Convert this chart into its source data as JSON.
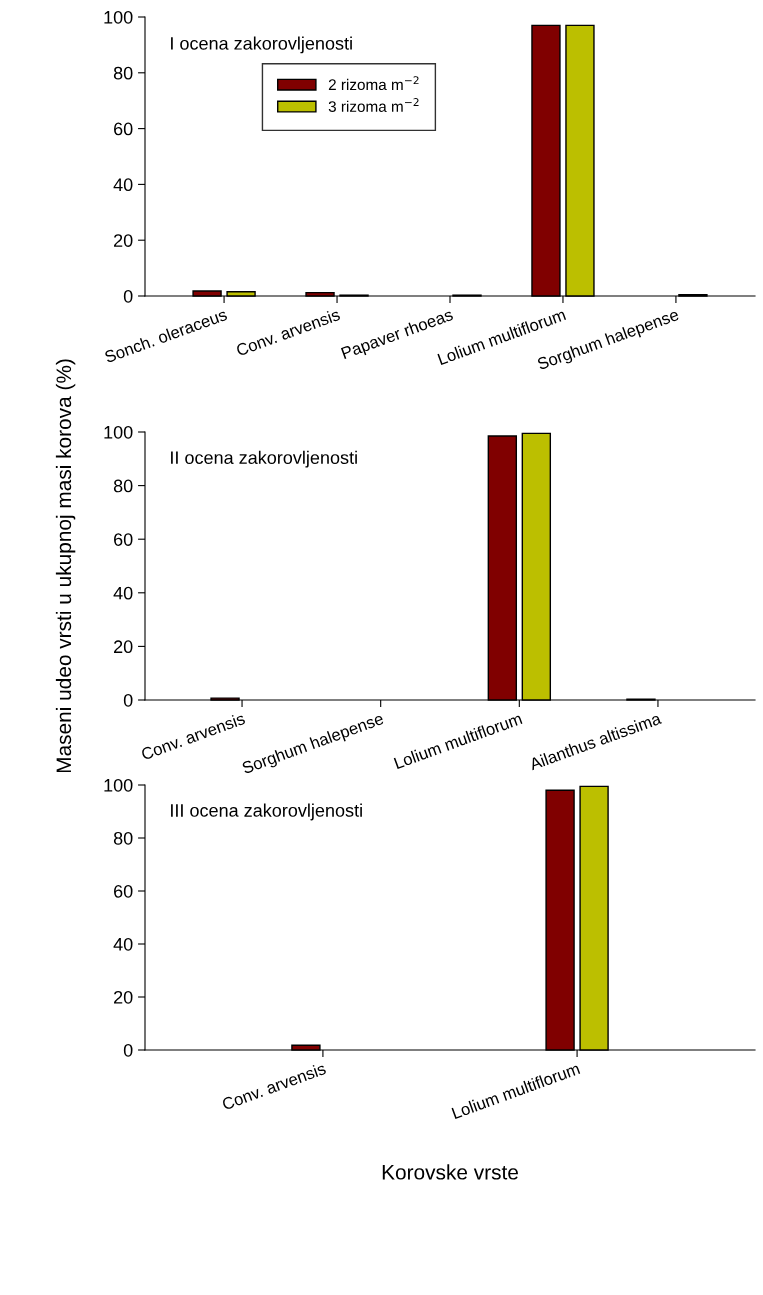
{
  "chart_data": [
    {
      "type": "bar",
      "title": "I ocena zakorovljenosti",
      "categories": [
        "Sonch. oleraceus",
        "Conv. arvensis",
        "Papaver rhoeas",
        "Lolium multiflorum",
        "Sorghum halepense"
      ],
      "series": [
        {
          "name": "2 rizoma m$^{−2}$",
          "color": "#800000",
          "values": [
            1.8,
            1.2,
            null,
            97,
            null
          ]
        },
        {
          "name": "3 rizoma m$^{−2}$",
          "color": "#bcbf00",
          "values": [
            1.5,
            0.3,
            0.3,
            97,
            0.5
          ]
        }
      ],
      "ylim": [
        0,
        100
      ],
      "yticks": [
        0,
        20,
        40,
        60,
        80,
        100
      ],
      "legend": "top left",
      "grid": false
    },
    {
      "type": "bar",
      "title": "II ocena zakorovljenosti",
      "ylabel": "Maseni udeo vrsti u ukupnoj masi korova (%)",
      "categories": [
        "Conv. arvensis",
        "Sorghum halepense",
        "Lolium multiflorum",
        "Ailanthus altissima"
      ],
      "series": [
        {
          "color": "#800000",
          "values": [
            0.7,
            null,
            98.5,
            0.3
          ]
        },
        {
          "color": "#bcbf00",
          "values": [
            null,
            null,
            99.5,
            null
          ]
        }
      ],
      "ylim": [
        0,
        100
      ],
      "yticks": [
        0,
        20,
        40,
        60,
        80,
        100
      ],
      "grid": false
    },
    {
      "type": "bar",
      "title": "III ocena zakorovljenosti",
      "xlabel": "Korovske vrste",
      "categories": [
        "Conv. arvensis",
        "Lolium multiflorum"
      ],
      "series": [
        {
          "color": "#800000",
          "values": [
            1.8,
            98
          ]
        },
        {
          "color": "#bcbf00",
          "values": [
            null,
            99.5
          ]
        }
      ],
      "ylim": [
        0,
        100
      ],
      "yticks": [
        0,
        20,
        40,
        60,
        80,
        100
      ],
      "grid": false
    }
  ]
}
